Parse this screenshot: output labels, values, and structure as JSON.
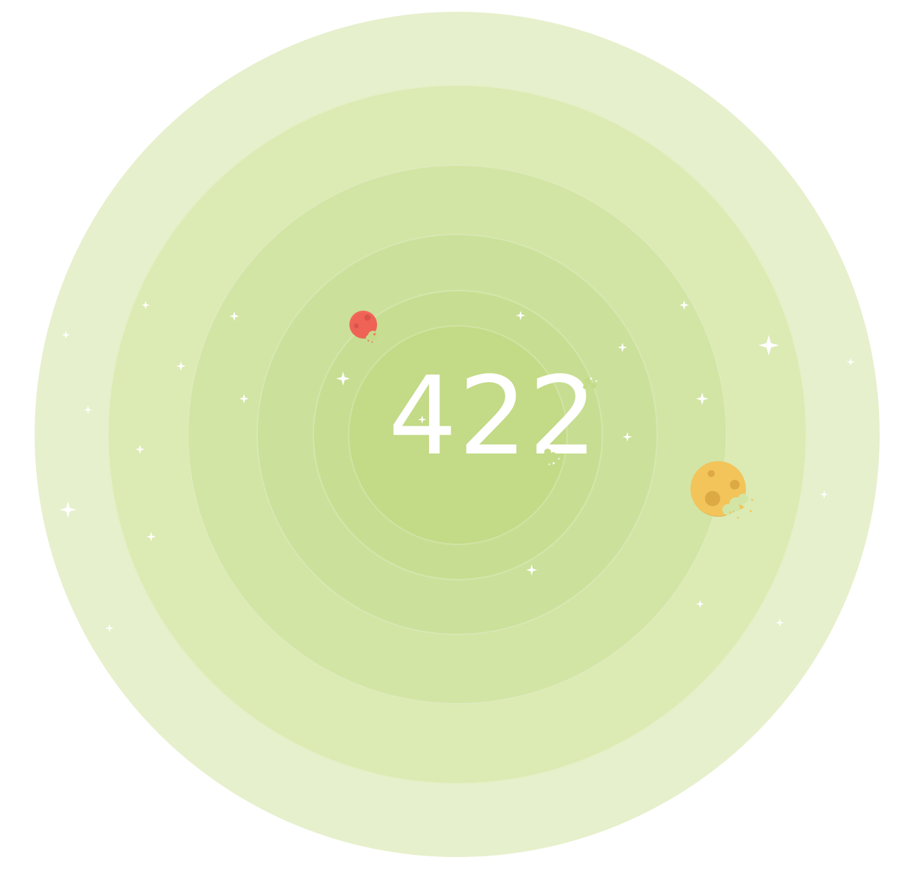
{
  "error_code": "422",
  "colors": {
    "background": "#ffffff",
    "ring_1": "#e6f0cc",
    "ring_2": "#dceab3",
    "ring_3": "#d3e5a5",
    "ring_4": "#cbe09a",
    "ring_5": "#c7de92",
    "ring_6": "#c3da87",
    "text": "#ffffff",
    "star": "#ffffff",
    "planet_red": "#f2675a",
    "planet_red_dark": "#d9534b",
    "planet_yellow": "#f2c45a",
    "planet_yellow_dark": "#dda944"
  },
  "icons": {
    "star": "sparkle-star-icon",
    "planet_small": "bitten-red-planet-icon",
    "planet_large": "bitten-yellow-planet-icon"
  }
}
